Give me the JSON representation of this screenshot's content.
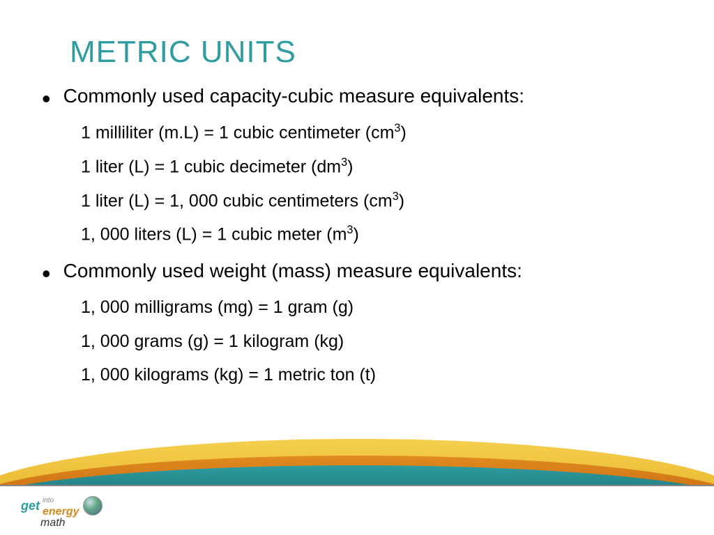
{
  "title": "METRIC UNITS",
  "colors": {
    "title": "#2e9ca0",
    "text": "#000000",
    "wave_yellow_top": "#f5d04e",
    "wave_yellow_bottom": "#e8b52e",
    "wave_orange_top": "#e08a1e",
    "wave_orange_bottom": "#c76a14",
    "wave_teal_top": "#2e9ca0",
    "wave_teal_bottom": "#1e6b6e",
    "background": "#ffffff"
  },
  "typography": {
    "title_fontsize": 44,
    "bullet_fontsize": 28,
    "subitem_fontsize": 25,
    "font_family": "Arial"
  },
  "sections": [
    {
      "heading": "Commonly used capacity-cubic measure equivalents:",
      "items": [
        {
          "left": "1 milliliter (m.L)",
          "right": "1 cubic centimeter (cm",
          "sup": "3",
          "tail": ")"
        },
        {
          "left": "1 liter (L)",
          "right": "1 cubic decimeter (dm",
          "sup": "3",
          "tail": ")"
        },
        {
          "left": "1 liter (L)",
          "right": "1, 000 cubic centimeters (cm",
          "sup": "3",
          "tail": ")"
        },
        {
          "left": "1, 000 liters (L)",
          "right": "1 cubic meter (m",
          "sup": "3",
          "tail": ")"
        }
      ]
    },
    {
      "heading": "Commonly used weight (mass) measure equivalents:",
      "items": [
        {
          "left": "1, 000 milligrams (mg)",
          "right": "1 gram (g)",
          "sup": "",
          "tail": ""
        },
        {
          "left": "1, 000 grams (g)",
          "right": "1 kilogram (kg)",
          "sup": "",
          "tail": ""
        },
        {
          "left": "1, 000 kilograms (kg)",
          "right": "1 metric ton (t)",
          "sup": "",
          "tail": ""
        }
      ]
    }
  ],
  "logo": {
    "get": "get",
    "into": "into",
    "energy": "energy",
    "math": "math"
  }
}
